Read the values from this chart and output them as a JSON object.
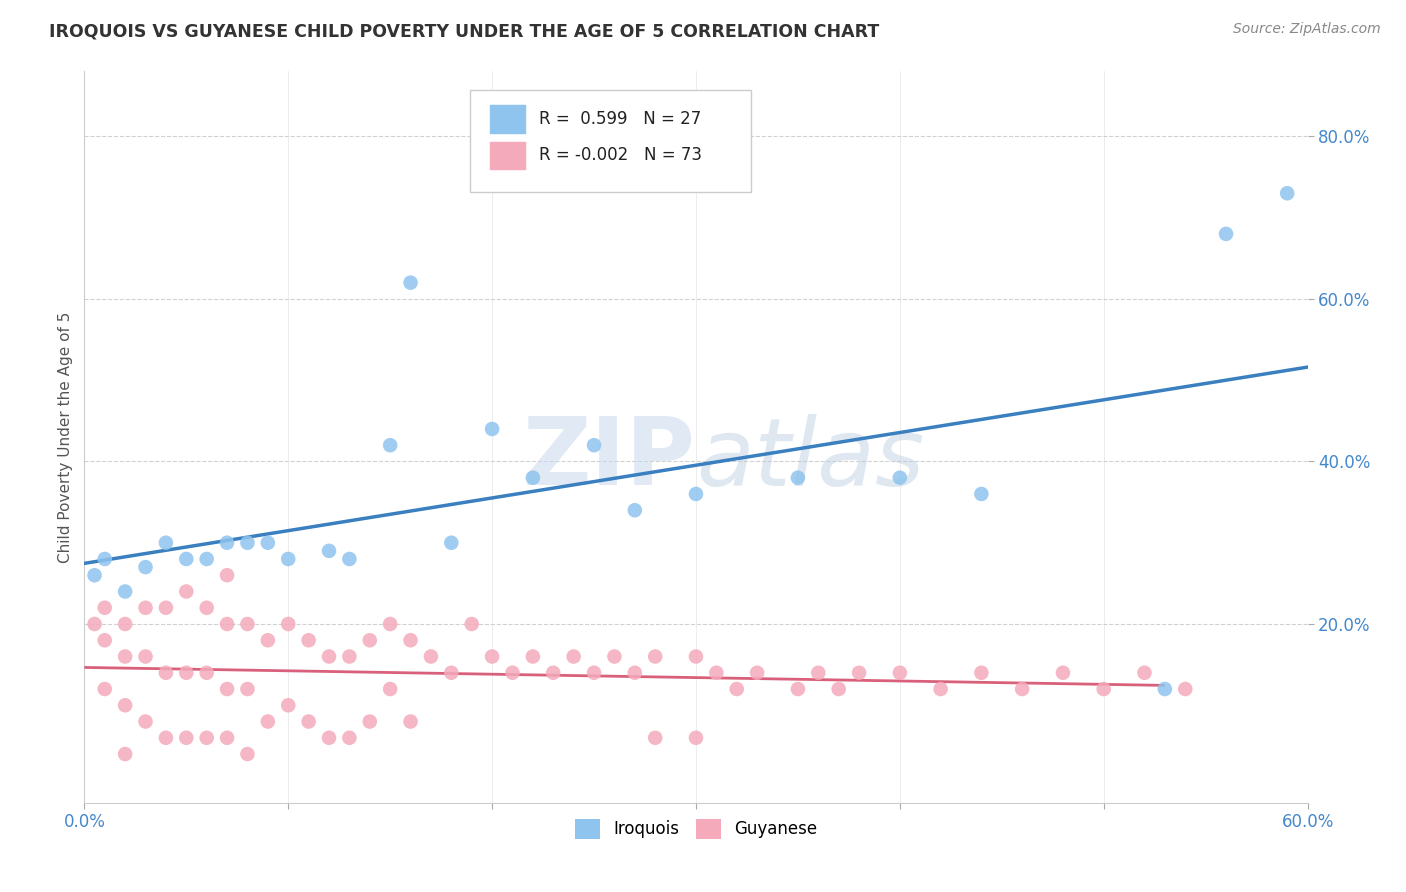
{
  "title": "IROQUOIS VS GUYANESE CHILD POVERTY UNDER THE AGE OF 5 CORRELATION CHART",
  "source": "Source: ZipAtlas.com",
  "ylabel": "Child Poverty Under the Age of 5",
  "xlim": [
    0.0,
    0.6
  ],
  "ylim": [
    -0.02,
    0.88
  ],
  "ytick_vals": [
    0.2,
    0.4,
    0.6,
    0.8
  ],
  "ytick_labels": [
    "20.0%",
    "40.0%",
    "60.0%",
    "80.0%"
  ],
  "xtick_vals": [
    0.0,
    0.1,
    0.2,
    0.3,
    0.4,
    0.5,
    0.6
  ],
  "xtick_show": [
    "0.0%",
    "",
    "",
    "",
    "",
    "",
    "60.0%"
  ],
  "watermark_text": "ZIPatlas",
  "iroquois_color": "#8EC4EE",
  "guyanese_color": "#F4AABB",
  "trendline_iroquois_color": "#3A7FBF",
  "trendline_guyanese_color": "#D9607A",
  "legend_R_iroquois": "0.599",
  "legend_N_iroquois": "27",
  "legend_R_guyanese": "-0.002",
  "legend_N_guyanese": "73",
  "iroquois_x": [
    0.005,
    0.01,
    0.02,
    0.03,
    0.04,
    0.05,
    0.06,
    0.07,
    0.08,
    0.09,
    0.1,
    0.12,
    0.13,
    0.15,
    0.16,
    0.18,
    0.2,
    0.22,
    0.25,
    0.27,
    0.3,
    0.35,
    0.4,
    0.44,
    0.53,
    0.56,
    0.59
  ],
  "iroquois_y": [
    0.26,
    0.28,
    0.24,
    0.27,
    0.3,
    0.28,
    0.28,
    0.3,
    0.3,
    0.3,
    0.28,
    0.29,
    0.28,
    0.42,
    0.62,
    0.3,
    0.44,
    0.38,
    0.42,
    0.34,
    0.36,
    0.38,
    0.38,
    0.36,
    0.12,
    0.68,
    0.73
  ],
  "guyanese_x": [
    0.005,
    0.01,
    0.01,
    0.01,
    0.02,
    0.02,
    0.02,
    0.02,
    0.03,
    0.03,
    0.03,
    0.04,
    0.04,
    0.04,
    0.05,
    0.05,
    0.05,
    0.06,
    0.06,
    0.06,
    0.07,
    0.07,
    0.07,
    0.07,
    0.08,
    0.08,
    0.08,
    0.09,
    0.09,
    0.1,
    0.1,
    0.11,
    0.11,
    0.12,
    0.12,
    0.13,
    0.13,
    0.14,
    0.14,
    0.15,
    0.15,
    0.16,
    0.16,
    0.17,
    0.18,
    0.19,
    0.2,
    0.21,
    0.22,
    0.23,
    0.24,
    0.25,
    0.26,
    0.27,
    0.28,
    0.28,
    0.3,
    0.3,
    0.31,
    0.32,
    0.33,
    0.35,
    0.36,
    0.37,
    0.38,
    0.4,
    0.42,
    0.44,
    0.46,
    0.48,
    0.5,
    0.52,
    0.54
  ],
  "guyanese_y": [
    0.2,
    0.22,
    0.18,
    0.12,
    0.2,
    0.16,
    0.1,
    0.04,
    0.22,
    0.16,
    0.08,
    0.22,
    0.14,
    0.06,
    0.24,
    0.14,
    0.06,
    0.22,
    0.14,
    0.06,
    0.26,
    0.2,
    0.12,
    0.06,
    0.2,
    0.12,
    0.04,
    0.18,
    0.08,
    0.2,
    0.1,
    0.18,
    0.08,
    0.16,
    0.06,
    0.16,
    0.06,
    0.18,
    0.08,
    0.2,
    0.12,
    0.18,
    0.08,
    0.16,
    0.14,
    0.2,
    0.16,
    0.14,
    0.16,
    0.14,
    0.16,
    0.14,
    0.16,
    0.14,
    0.16,
    0.06,
    0.16,
    0.06,
    0.14,
    0.12,
    0.14,
    0.12,
    0.14,
    0.12,
    0.14,
    0.14,
    0.12,
    0.14,
    0.12,
    0.14,
    0.12,
    0.14,
    0.12
  ],
  "background_color": "#FFFFFF",
  "grid_color": "#CCCCCC",
  "title_color": "#333333",
  "source_color": "#888888",
  "tick_color": "#4488CC"
}
